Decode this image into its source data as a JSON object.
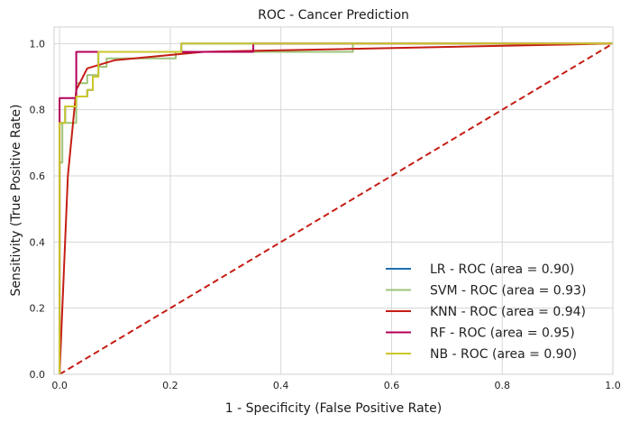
{
  "chart_data": {
    "type": "line",
    "title": "ROC - Cancer  Prediction",
    "xlabel": "1 - Specificity (False Positive Rate)",
    "ylabel": "Sensitivity (True Positive Rate)",
    "xlim": [
      -0.01,
      1.0
    ],
    "ylim": [
      0.0,
      1.05
    ],
    "xticks": [
      "0.0",
      "0.2",
      "0.4",
      "0.6",
      "0.8",
      "1.0"
    ],
    "yticks": [
      "0.0",
      "0.2",
      "0.4",
      "0.6",
      "0.8",
      "1.0"
    ],
    "grid": true,
    "legend_position": "lower-right",
    "series": [
      {
        "name": "LR - ROC (area = 0.90)",
        "color": "#1f6fb0",
        "style": "step",
        "x": [
          0,
          0,
          0.01,
          0.01,
          0.03,
          0.03,
          0.05,
          0.05,
          0.06,
          0.06,
          0.07,
          0.07,
          0.22,
          0.22,
          1.0
        ],
        "y": [
          0,
          0.76,
          0.76,
          0.81,
          0.81,
          0.84,
          0.84,
          0.86,
          0.86,
          0.9,
          0.9,
          0.975,
          0.975,
          1.0,
          1.0
        ]
      },
      {
        "name": "SVM - ROC (area = 0.93)",
        "color": "#9ec47a",
        "style": "step",
        "x": [
          0,
          0,
          0.005,
          0.005,
          0.03,
          0.03,
          0.05,
          0.05,
          0.07,
          0.07,
          0.085,
          0.085,
          0.21,
          0.21,
          0.53,
          0.53,
          1.0
        ],
        "y": [
          0,
          0.64,
          0.64,
          0.76,
          0.76,
          0.88,
          0.88,
          0.905,
          0.905,
          0.93,
          0.93,
          0.955,
          0.955,
          0.975,
          0.975,
          1.0,
          1.0
        ]
      },
      {
        "name": "KNN - ROC (area = 0.94)",
        "color": "#c51d14",
        "style": "line",
        "x": [
          0,
          0.015,
          0.03,
          0.05,
          0.1,
          0.26,
          1.0
        ],
        "y": [
          0,
          0.6,
          0.86,
          0.925,
          0.95,
          0.975,
          1.0
        ]
      },
      {
        "name": "RF - ROC (area = 0.95)",
        "color": "#b5005b",
        "style": "step",
        "x": [
          0,
          0,
          0.03,
          0.03,
          0.35,
          0.35,
          1.0
        ],
        "y": [
          0,
          0.835,
          0.835,
          0.975,
          0.975,
          1.0,
          1.0
        ]
      },
      {
        "name": "NB - ROC (area = 0.90)",
        "color": "#ccc72c",
        "style": "step",
        "x": [
          0,
          0,
          0.01,
          0.01,
          0.03,
          0.03,
          0.05,
          0.05,
          0.06,
          0.06,
          0.07,
          0.07,
          0.22,
          0.22,
          1.0
        ],
        "y": [
          0,
          0.76,
          0.76,
          0.81,
          0.81,
          0.84,
          0.84,
          0.86,
          0.86,
          0.9,
          0.9,
          0.975,
          0.975,
          1.0,
          1.0
        ]
      }
    ],
    "reference_line": {
      "color": "#c51d14",
      "style": "dashed",
      "x": [
        0,
        1.0
      ],
      "y": [
        0,
        1.0
      ]
    }
  }
}
